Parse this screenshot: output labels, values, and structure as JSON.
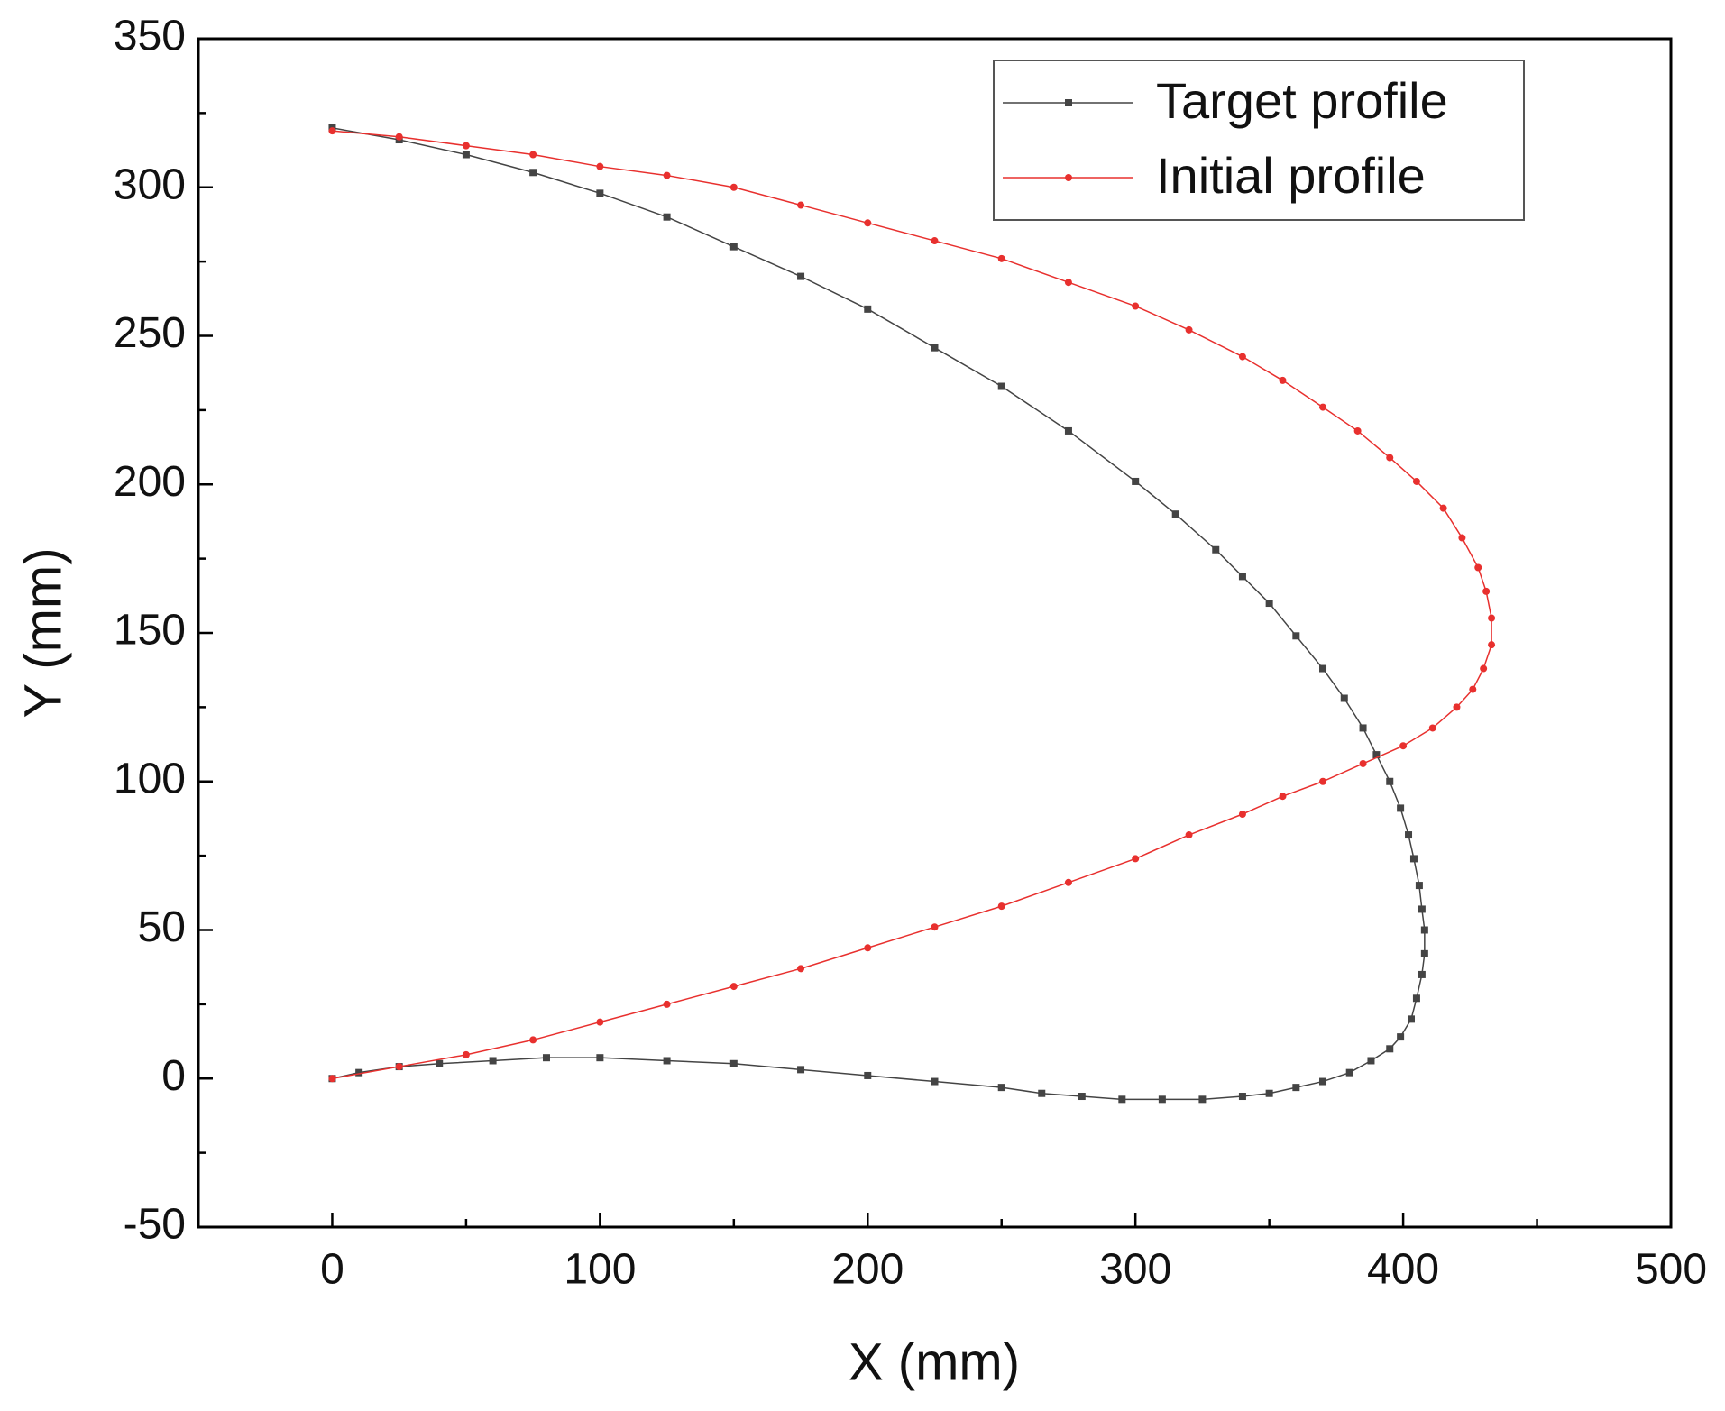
{
  "chart_data": {
    "type": "line",
    "x_label": "X (mm)",
    "y_label": "Y (mm)",
    "xlim": [
      -50,
      500
    ],
    "ylim": [
      -50,
      350
    ],
    "xticks": [
      0,
      100,
      200,
      300,
      400,
      500
    ],
    "yticks": [
      -50,
      0,
      50,
      100,
      150,
      200,
      250,
      300,
      350
    ],
    "xminorticks": [
      50,
      150,
      250,
      350,
      450
    ],
    "yminorticks": [
      -25,
      25,
      75,
      125,
      175,
      225,
      275,
      325
    ],
    "legend": "upper right",
    "series": [
      {
        "name": "Target profile",
        "color": "#444444",
        "marker": "square",
        "x": [
          0,
          25,
          50,
          75,
          100,
          125,
          150,
          175,
          200,
          225,
          250,
          275,
          300,
          315,
          330,
          340,
          350,
          360,
          370,
          378,
          385,
          390,
          395,
          399,
          402,
          404,
          406,
          407,
          408,
          408,
          407,
          405,
          403,
          399,
          395,
          388,
          380,
          370,
          360,
          350,
          340,
          325,
          310,
          295,
          280,
          265,
          250,
          225,
          200,
          175,
          150,
          125,
          100,
          80,
          60,
          40,
          25,
          10,
          0
        ],
        "values": [
          320,
          316,
          311,
          305,
          298,
          290,
          280,
          270,
          259,
          246,
          233,
          218,
          201,
          190,
          178,
          169,
          160,
          149,
          138,
          128,
          118,
          109,
          100,
          91,
          82,
          74,
          65,
          57,
          50,
          42,
          35,
          27,
          20,
          14,
          10,
          6,
          2,
          -1,
          -3,
          -5,
          -6,
          -7,
          -7,
          -7,
          -6,
          -5,
          -3,
          -1,
          1,
          3,
          5,
          6,
          7,
          7,
          6,
          5,
          4,
          2,
          0
        ]
      },
      {
        "name": "Initial profile",
        "color": "#e8302e",
        "marker": "circle",
        "x": [
          0,
          25,
          50,
          75,
          100,
          125,
          150,
          175,
          200,
          225,
          250,
          275,
          300,
          320,
          340,
          355,
          370,
          383,
          395,
          405,
          415,
          422,
          428,
          431,
          433,
          433,
          430,
          426,
          420,
          411,
          400,
          385,
          370,
          355,
          340,
          320,
          300,
          275,
          250,
          225,
          200,
          175,
          150,
          125,
          100,
          75,
          50,
          25,
          0
        ],
        "values": [
          319,
          317,
          314,
          311,
          307,
          304,
          300,
          294,
          288,
          282,
          276,
          268,
          260,
          252,
          243,
          235,
          226,
          218,
          209,
          201,
          192,
          182,
          172,
          164,
          155,
          146,
          138,
          131,
          125,
          118,
          112,
          106,
          100,
          95,
          89,
          82,
          74,
          66,
          58,
          51,
          44,
          37,
          31,
          25,
          19,
          13,
          8,
          4,
          0
        ]
      }
    ]
  }
}
